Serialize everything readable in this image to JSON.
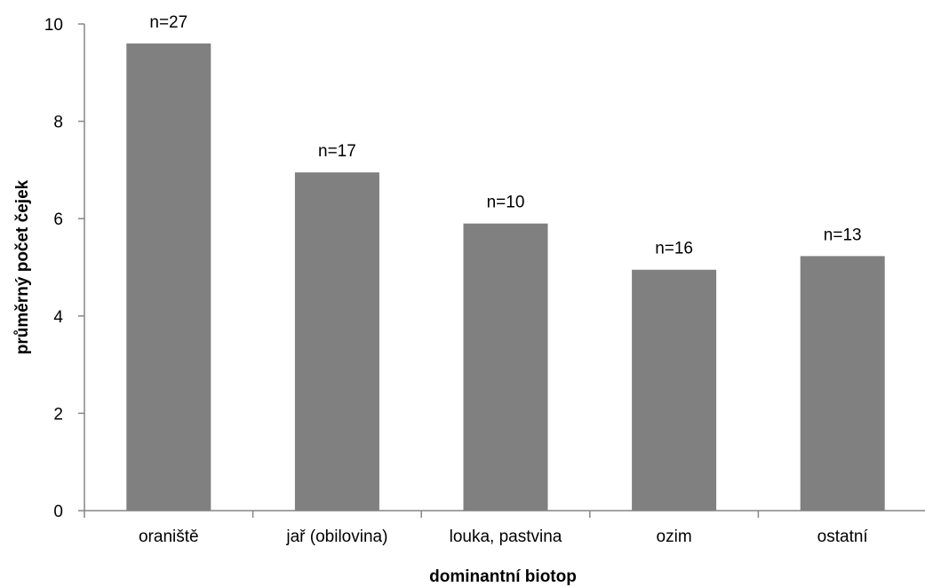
{
  "chart_data": {
    "type": "bar",
    "categories": [
      "oraniště",
      "jař (obilovina)",
      "louka, pastvina",
      "ozim",
      "ostatní"
    ],
    "values": [
      9.6,
      6.95,
      5.9,
      4.95,
      5.23
    ],
    "data_labels": [
      "n=27",
      "n=17",
      "n=10",
      "n=16",
      "n=13"
    ],
    "title": "",
    "xlabel": "dominantní biotop",
    "ylabel": "průměrný počet čejek",
    "ylim": [
      0,
      10
    ],
    "yticks": [
      0,
      2,
      4,
      6,
      8,
      10
    ],
    "ytick_labels": [
      "0",
      "2",
      "4",
      "6",
      "8",
      "10"
    ],
    "grid": false,
    "bar_color": "#808080",
    "axis_color": "#868686"
  }
}
